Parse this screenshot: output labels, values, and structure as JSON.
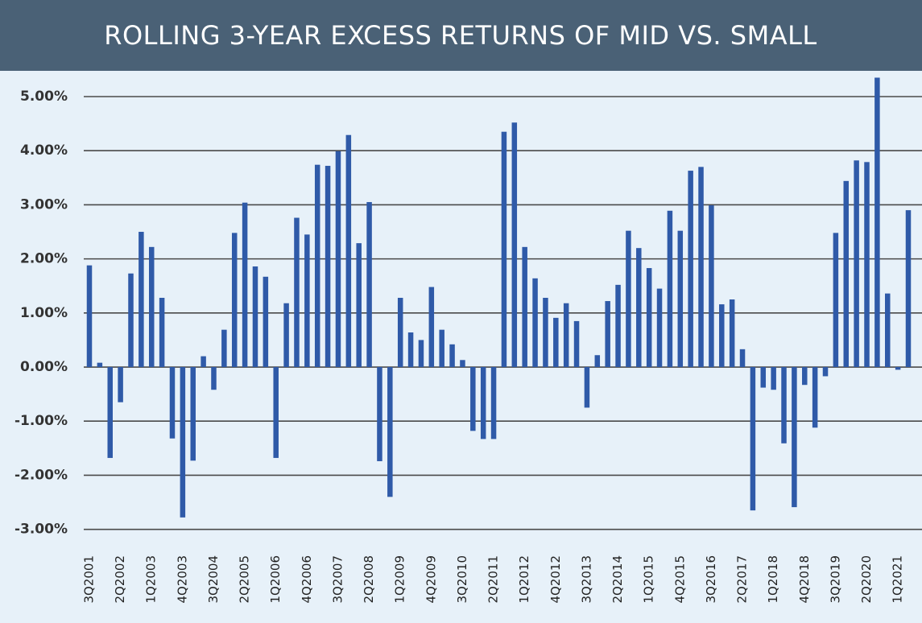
{
  "chart_data": {
    "type": "bar",
    "title": "ROLLING 3-YEAR EXCESS RETURNS OF MID VS. SMALL",
    "categories": [
      "3Q2001",
      null,
      null,
      "2Q2002",
      null,
      null,
      "1Q2003",
      null,
      null,
      "4Q2003",
      null,
      null,
      "3Q2004",
      null,
      null,
      "2Q2005",
      null,
      null,
      "1Q2006",
      null,
      null,
      "4Q2006",
      null,
      null,
      "3Q2007",
      null,
      null,
      "2Q2008",
      null,
      null,
      "1Q2009",
      null,
      null,
      "4Q2009",
      null,
      null,
      "3Q2010",
      null,
      null,
      "2Q2011",
      null,
      null,
      "1Q2012",
      null,
      null,
      "4Q2012",
      null,
      null,
      "3Q2013",
      null,
      null,
      "2Q2014",
      null,
      null,
      "1Q2015",
      null,
      null,
      "4Q2015",
      null,
      null,
      "3Q2016",
      null,
      null,
      "2Q2017",
      null,
      null,
      "1Q2018",
      null,
      null,
      "4Q2018",
      null,
      null,
      "3Q2019",
      null,
      null,
      "2Q2020",
      null,
      null,
      "1Q2021",
      null
    ],
    "values": [
      1.88,
      0.08,
      -1.68,
      -0.65,
      1.73,
      2.5,
      2.22,
      1.28,
      -1.32,
      -2.78,
      -1.73,
      0.2,
      -0.42,
      0.69,
      2.48,
      3.04,
      1.86,
      1.67,
      -1.68,
      1.18,
      2.76,
      2.45,
      3.74,
      3.72,
      3.99,
      4.29,
      2.29,
      3.05,
      -1.74,
      -2.4,
      1.28,
      0.64,
      0.5,
      1.48,
      0.69,
      0.42,
      0.13,
      -1.18,
      -1.33,
      -1.33,
      4.35,
      4.52,
      2.22,
      1.64,
      1.28,
      0.91,
      1.18,
      0.85,
      -0.75,
      0.22,
      1.22,
      1.52,
      2.52,
      2.2,
      1.83,
      1.45,
      2.89,
      2.52,
      3.63,
      3.7,
      2.99,
      1.16,
      1.25,
      0.33,
      -2.65,
      -0.38,
      -0.42,
      -1.41,
      -2.59,
      -0.33,
      -1.12,
      -0.17,
      2.48,
      3.44,
      3.82,
      3.79,
      5.35,
      1.36,
      -0.05,
      2.9
    ],
    "color": "#2f5aa8",
    "ylim": [
      -3.3,
      5.5
    ],
    "yticks": [
      {
        "value": -3,
        "label": "-3.00%"
      },
      {
        "value": -2,
        "label": "-2.00%"
      },
      {
        "value": -1,
        "label": "-1.00%"
      },
      {
        "value": 0,
        "label": "0.00%"
      },
      {
        "value": 1,
        "label": "1.00%"
      },
      {
        "value": 2,
        "label": "2.00%"
      },
      {
        "value": 3,
        "label": "3.00%"
      },
      {
        "value": 4,
        "label": "4.00%"
      },
      {
        "value": 5,
        "label": "5.00%"
      }
    ],
    "grid": true
  }
}
